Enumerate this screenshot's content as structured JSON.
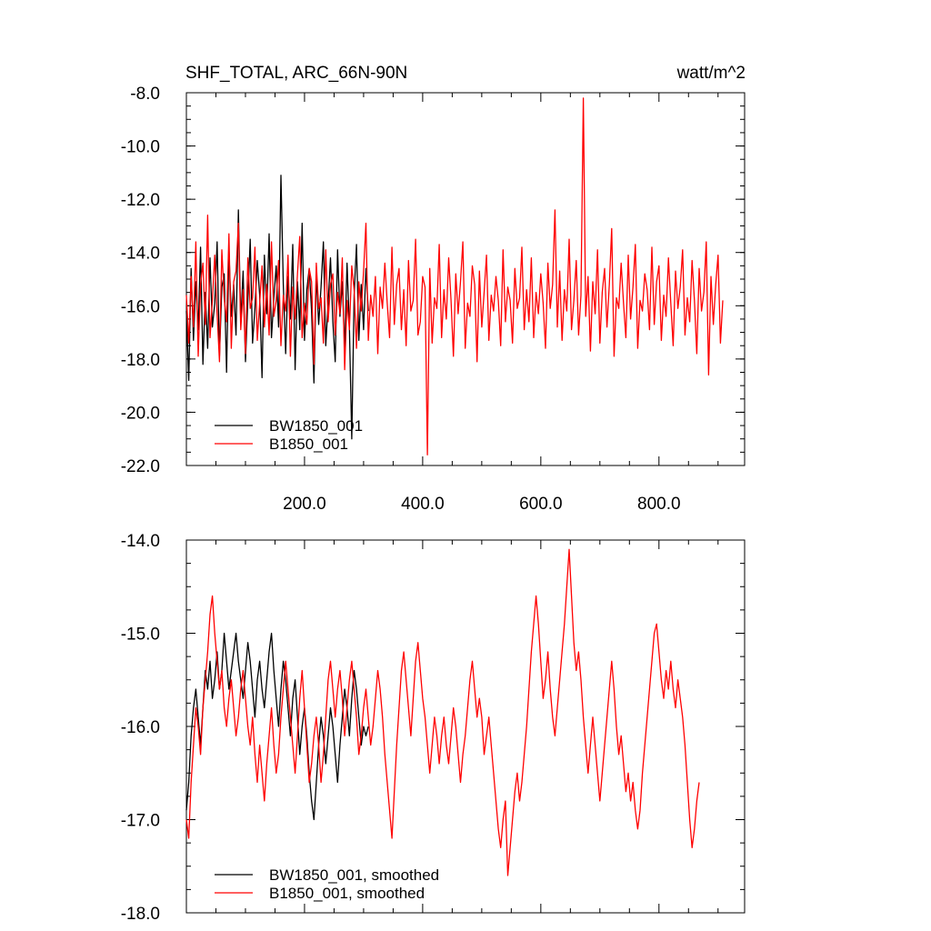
{
  "chart_data": [
    {
      "type": "line",
      "title": "SHF_TOTAL, ARC_66N-90N",
      "units": "watt/m^2",
      "xlabel": "",
      "ylabel": "",
      "xlim": [
        0,
        945
      ],
      "ylim": [
        -22.0,
        -8.0
      ],
      "x_ticks": [
        200,
        400,
        600,
        800
      ],
      "x_tick_labels": [
        "200.0",
        "400.0",
        "600.0",
        "800.0"
      ],
      "y_ticks": [
        -22,
        -20,
        -18,
        -16,
        -14,
        -12,
        -10,
        -8
      ],
      "y_tick_labels": [
        "-22.0",
        "-20.0",
        "-18.0",
        "-16.0",
        "-14.0",
        "-12.0",
        "-10.0",
        "-8.0"
      ],
      "grid": false,
      "legend_position": "bottom-left",
      "series": [
        {
          "name": "BW1850_001",
          "color": "#000000",
          "x_start": 0,
          "x_step": 4,
          "values": [
            -16.2,
            -18.8,
            -14.6,
            -17.3,
            -15.1,
            -16.9,
            -13.8,
            -18.2,
            -15.5,
            -17.6,
            -14.2,
            -16.8,
            -15.9,
            -13.6,
            -17.9,
            -15.3,
            -14.8,
            -18.5,
            -13.9,
            -16.4,
            -15.2,
            -17.1,
            -12.4,
            -16.6,
            -14.7,
            -18.1,
            -15.8,
            -13.5,
            -17.4,
            -16.1,
            -14.3,
            -15.6,
            -18.7,
            -14.1,
            -16.3,
            -13.3,
            -17.2,
            -15.7,
            -14.5,
            -16.8,
            -11.1,
            -15.2,
            -17.8,
            -14.9,
            -16.5,
            -13.7,
            -18.4,
            -15.1,
            -16.9,
            -12.9,
            -17.3,
            -15.4,
            -14.6,
            -16.2,
            -18.9,
            -14.8,
            -16.7,
            -15.3,
            -13.6,
            -17.5,
            -15.9,
            -14.2,
            -16.6,
            -18.1,
            -13.9,
            -16.4,
            -15.1,
            -17.7,
            -14.4,
            -16.8,
            -21.0,
            -15.6,
            -13.7,
            -17.3,
            -15.2,
            -16.9,
            -14.6,
            -16.2
          ]
        },
        {
          "name": "B1850_001",
          "color": "#ff0000",
          "x_start": 0,
          "x_step": 4,
          "values": [
            -15.6,
            -17.4,
            -14.9,
            -16.8,
            -13.6,
            -17.9,
            -15.2,
            -14.4,
            -16.7,
            -12.6,
            -17.2,
            -15.8,
            -14.1,
            -16.3,
            -18.1,
            -13.9,
            -15.7,
            -16.6,
            -13.3,
            -17.6,
            -15.1,
            -14.7,
            -12.9,
            -16.9,
            -15.4,
            -17.8,
            -14.2,
            -16.1,
            -15.7,
            -13.8,
            -17.3,
            -15.9,
            -14.5,
            -16.8,
            -15.2,
            -17.1,
            -13.6,
            -16.4,
            -15.8,
            -14.3,
            -17.5,
            -15.6,
            -16.2,
            -14.1,
            -17.9,
            -15.3,
            -16.5,
            -14.8,
            -13.4,
            -17.2,
            -15.9,
            -16.7,
            -14.6,
            -15.1,
            -18.2,
            -14.4,
            -16.1,
            -15.7,
            -17.4,
            -13.9,
            -16.6,
            -15.2,
            -14.8,
            -17.1,
            -15.5,
            -16.3,
            -14.2,
            -18.4,
            -15.8,
            -16.9,
            -14.5,
            -15.4,
            -17.6,
            -15.1,
            -16.2,
            -14.7,
            -12.9,
            -17.3,
            -15.6,
            -16.4,
            -14.9,
            -17.8,
            -15.3,
            -16.1,
            -14.4,
            -15.9,
            -17.2,
            -13.8,
            -16.7,
            -15.2,
            -14.6,
            -16.9,
            -15.4,
            -17.5,
            -14.3,
            -16.2,
            -15.8,
            -13.5,
            -17.1,
            -16.6,
            -14.9,
            -15.3,
            -21.6,
            -14.6,
            -17.4,
            -15.7,
            -16.1,
            -13.7,
            -17.2,
            -15.4,
            -16.5,
            -14.2,
            -15.8,
            -17.9,
            -14.8,
            -16.3,
            -15.1,
            -13.6,
            -17.6,
            -15.9,
            -16.4,
            -14.5,
            -15.2,
            -18.1,
            -14.7,
            -16.8,
            -15.5,
            -14.1,
            -17.3,
            -15.6,
            -16.2,
            -14.9,
            -15.8,
            -17.5,
            -13.9,
            -16.6,
            -15.3,
            -15.8,
            -17.4,
            -14.6,
            -16.1,
            -15.7,
            -13.8,
            -16.9,
            -15.4,
            -16.6,
            -14.2,
            -17.2,
            -15.5,
            -16.3,
            -14.8,
            -15.9,
            -17.6,
            -14.4,
            -16.1,
            -15.2,
            -12.4,
            -16.8,
            -14.7,
            -17.3,
            -15.4,
            -16.2,
            -13.5,
            -16.9,
            -15.8,
            -14.3,
            -17.1,
            -15.6,
            -8.2,
            -16.4,
            -14.9,
            -17.7,
            -15.1,
            -16.3,
            -13.9,
            -17.4,
            -15.5,
            -14.6,
            -16.8,
            -15.2,
            -13.1,
            -17.9,
            -15.7,
            -16.1,
            -14.4,
            -15.9,
            -17.2,
            -14.1,
            -16.5,
            -15.3,
            -13.7,
            -17.6,
            -15.8,
            -16.2,
            -14.8,
            -15.4,
            -16.9,
            -13.8,
            -16.7,
            -15.1,
            -14.5,
            -17.3,
            -15.6,
            -16.4,
            -14.2,
            -15.9,
            -17.5,
            -14.7,
            -16.1,
            -15.3,
            -13.9,
            -17.1,
            -15.7,
            -16.6,
            -14.3,
            -15.8,
            -17.8,
            -14.6,
            -16.2,
            -15.5,
            -13.6,
            -18.6,
            -14.9,
            -16.7,
            -15.2,
            -14.1,
            -17.4,
            -15.8
          ]
        }
      ]
    },
    {
      "type": "line",
      "title": "",
      "xlabel": "",
      "ylabel": "",
      "xlim": [
        0,
        945
      ],
      "ylim": [
        -18.0,
        -14.0
      ],
      "x_ticks": [
        200,
        400,
        600,
        800
      ],
      "x_tick_labels": [
        "",
        "",
        "",
        ""
      ],
      "y_ticks": [
        -18,
        -17,
        -16,
        -15,
        -14
      ],
      "y_tick_labels": [
        "-18.0",
        "-17.0",
        "-16.0",
        "-15.0",
        "-14.0"
      ],
      "grid": false,
      "legend_position": "bottom-left",
      "series": [
        {
          "name": "BW1850_001, smoothed",
          "color": "#000000",
          "x_start": 0,
          "x_step": 4,
          "values": [
            -16.9,
            -16.6,
            -16.1,
            -15.8,
            -15.6,
            -15.9,
            -16.2,
            -15.8,
            -15.4,
            -15.6,
            -15.3,
            -15.7,
            -15.5,
            -15.2,
            -15.6,
            -15.4,
            -15.0,
            -15.3,
            -15.6,
            -15.4,
            -15.2,
            -15.0,
            -15.3,
            -15.5,
            -15.7,
            -15.4,
            -15.1,
            -15.3,
            -15.6,
            -15.9,
            -15.5,
            -15.3,
            -15.6,
            -15.8,
            -15.5,
            -15.2,
            -15.0,
            -15.4,
            -15.7,
            -16.0,
            -15.6,
            -15.3,
            -15.5,
            -15.8,
            -16.1,
            -15.7,
            -15.5,
            -15.9,
            -16.3,
            -16.0,
            -15.8,
            -16.1,
            -16.5,
            -16.8,
            -17.0,
            -16.6,
            -16.2,
            -15.9,
            -16.1,
            -16.4,
            -16.1,
            -15.8,
            -16.0,
            -16.3,
            -16.6,
            -16.2,
            -15.9,
            -15.6,
            -15.8,
            -16.1,
            -15.7,
            -15.4,
            -15.6,
            -15.9,
            -16.2,
            -16.0,
            -16.1,
            -16.0
          ]
        },
        {
          "name": "B1850_001, smoothed",
          "color": "#ff0000",
          "x_start": 0,
          "x_step": 4,
          "values": [
            -17.0,
            -17.2,
            -16.6,
            -16.2,
            -15.8,
            -16.0,
            -16.3,
            -15.8,
            -15.5,
            -15.2,
            -14.8,
            -14.6,
            -15.0,
            -15.3,
            -15.6,
            -15.4,
            -15.8,
            -16.0,
            -15.7,
            -15.5,
            -15.8,
            -16.1,
            -15.9,
            -15.6,
            -15.4,
            -15.7,
            -16.0,
            -16.2,
            -15.9,
            -16.3,
            -16.6,
            -16.2,
            -16.5,
            -16.8,
            -16.4,
            -16.1,
            -15.8,
            -16.2,
            -16.5,
            -16.3,
            -15.9,
            -15.6,
            -15.3,
            -15.6,
            -15.9,
            -16.2,
            -16.5,
            -16.1,
            -15.7,
            -15.4,
            -15.8,
            -16.2,
            -16.6,
            -16.4,
            -16.1,
            -15.9,
            -16.2,
            -16.6,
            -16.3,
            -15.9,
            -15.5,
            -15.3,
            -15.6,
            -15.9,
            -15.6,
            -15.4,
            -15.7,
            -16.1,
            -15.8,
            -15.5,
            -15.3,
            -15.6,
            -15.9,
            -16.3,
            -16.1,
            -15.8,
            -15.6,
            -15.9,
            -16.2,
            -16.0,
            -15.7,
            -15.4,
            -15.6,
            -15.9,
            -16.3,
            -16.6,
            -16.9,
            -17.2,
            -16.7,
            -16.2,
            -15.8,
            -15.4,
            -15.2,
            -15.5,
            -15.8,
            -16.1,
            -15.7,
            -15.3,
            -15.1,
            -15.4,
            -15.7,
            -15.9,
            -16.2,
            -16.5,
            -16.2,
            -15.9,
            -16.1,
            -16.4,
            -16.1,
            -15.9,
            -16.2,
            -16.4,
            -16.1,
            -15.8,
            -16.0,
            -16.3,
            -16.6,
            -16.3,
            -16.1,
            -15.8,
            -15.5,
            -15.3,
            -15.6,
            -15.9,
            -15.7,
            -15.9,
            -16.3,
            -16.1,
            -15.9,
            -16.2,
            -16.5,
            -16.8,
            -17.1,
            -17.3,
            -17.0,
            -16.8,
            -17.6,
            -17.3,
            -17.0,
            -16.7,
            -16.5,
            -16.8,
            -16.6,
            -16.3,
            -16.0,
            -15.6,
            -15.2,
            -14.9,
            -14.6,
            -14.9,
            -15.3,
            -15.7,
            -15.5,
            -15.2,
            -15.6,
            -15.9,
            -16.1,
            -15.8,
            -15.5,
            -15.2,
            -14.9,
            -14.5,
            -14.1,
            -14.6,
            -15.1,
            -15.4,
            -15.2,
            -15.5,
            -15.9,
            -16.2,
            -16.5,
            -16.2,
            -15.9,
            -16.2,
            -16.5,
            -16.8,
            -16.5,
            -16.2,
            -15.9,
            -15.6,
            -15.3,
            -15.6,
            -16.0,
            -16.3,
            -16.1,
            -16.4,
            -16.7,
            -16.5,
            -16.8,
            -16.6,
            -16.9,
            -17.1,
            -16.9,
            -16.5,
            -16.2,
            -15.9,
            -15.6,
            -15.3,
            -15.0,
            -14.9,
            -15.2,
            -15.5,
            -15.7,
            -15.4,
            -15.6,
            -15.3,
            -15.6,
            -15.8,
            -15.5,
            -15.7,
            -15.9,
            -16.2,
            -16.6,
            -17.0,
            -17.3,
            -17.1,
            -16.8,
            -16.6
          ]
        }
      ]
    }
  ]
}
